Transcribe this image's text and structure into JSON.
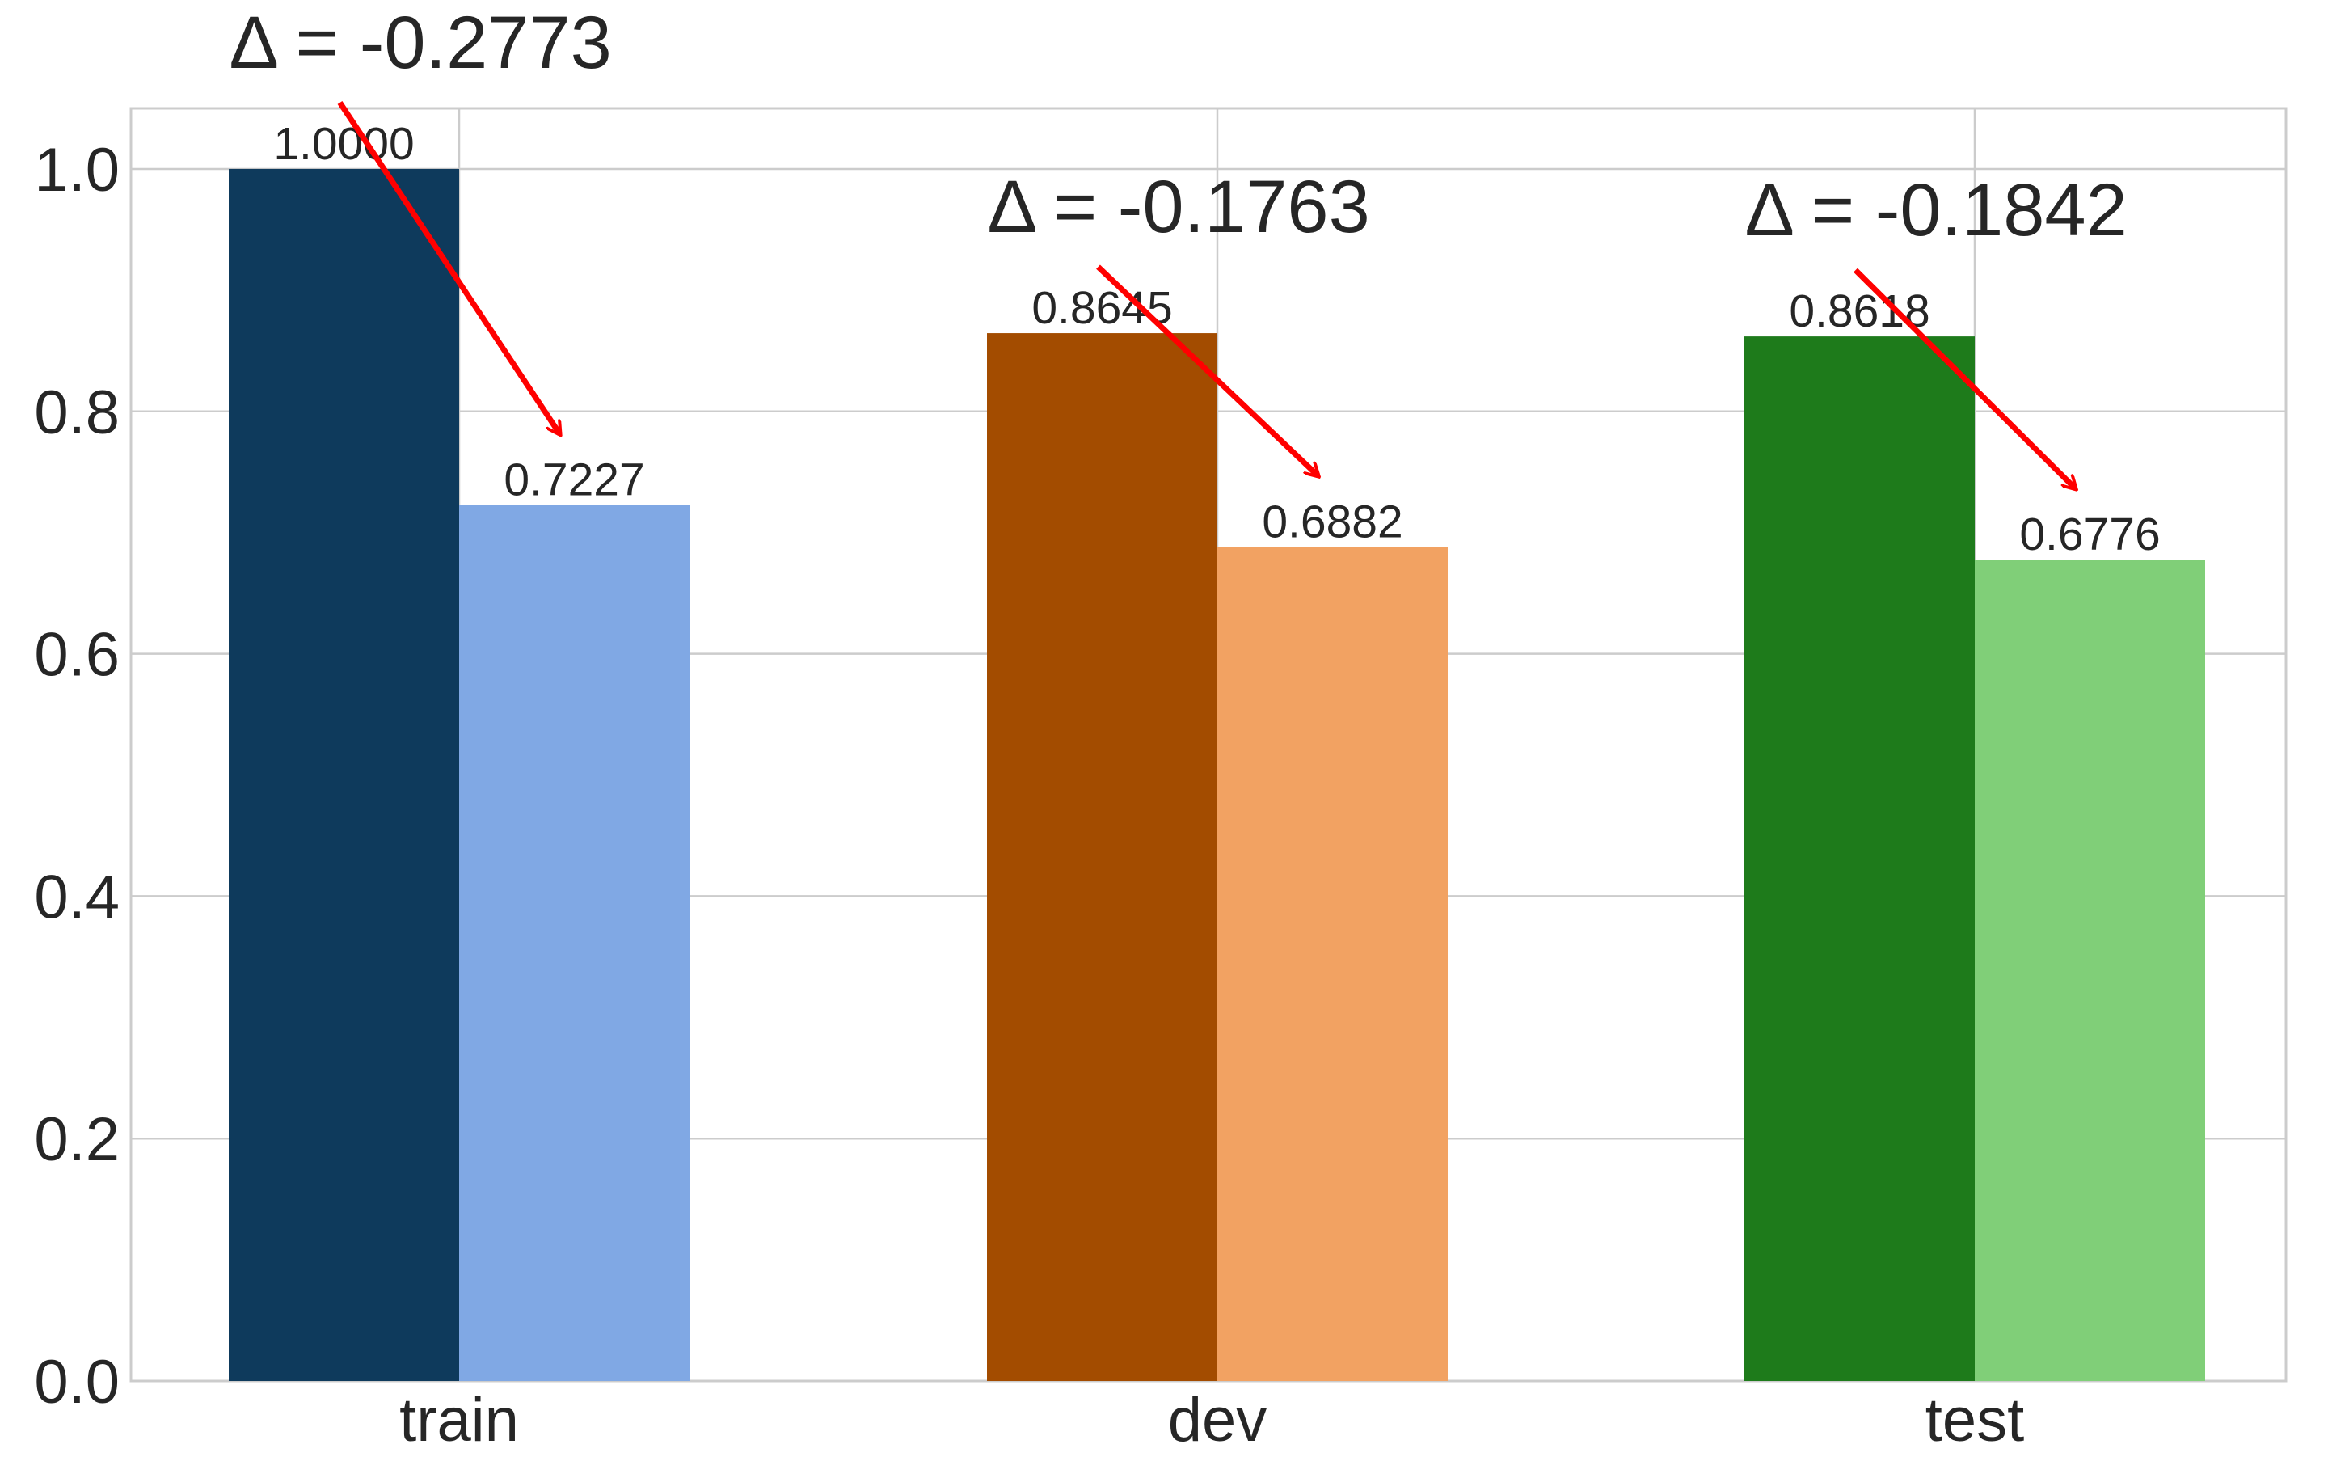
{
  "chart_data": {
    "type": "bar",
    "title": "",
    "xlabel": "",
    "ylabel": "",
    "categories": [
      "train",
      "dev",
      "test"
    ],
    "ylim": [
      0,
      1.05
    ],
    "yticks": [
      0.0,
      0.2,
      0.4,
      0.6,
      0.8,
      1.0
    ],
    "ytick_labels": [
      "0.0",
      "0.2",
      "0.4",
      "0.6",
      "0.8",
      "1.0"
    ],
    "grid": true,
    "legend": "none",
    "series": [
      {
        "values": [
          1.0,
          0.8645,
          0.8618
        ],
        "value_labels": [
          "1.0000",
          "0.8645",
          "0.8618"
        ],
        "colors": [
          "#0e3a5c",
          "#a34c00",
          "#1e7b1b"
        ]
      },
      {
        "values": [
          0.7227,
          0.6882,
          0.6776
        ],
        "value_labels": [
          "0.7227",
          "0.6882",
          "0.6776"
        ],
        "colors": [
          "#80a8e4",
          "#f2a262",
          "#80cf78"
        ]
      }
    ],
    "annotations": [
      {
        "text": "Δ = -0.2773",
        "category": "train"
      },
      {
        "text": "Δ = -0.1763",
        "category": "dev"
      },
      {
        "text": "Δ = -0.1842",
        "category": "test"
      }
    ],
    "arrow_color": "#ff0000"
  }
}
